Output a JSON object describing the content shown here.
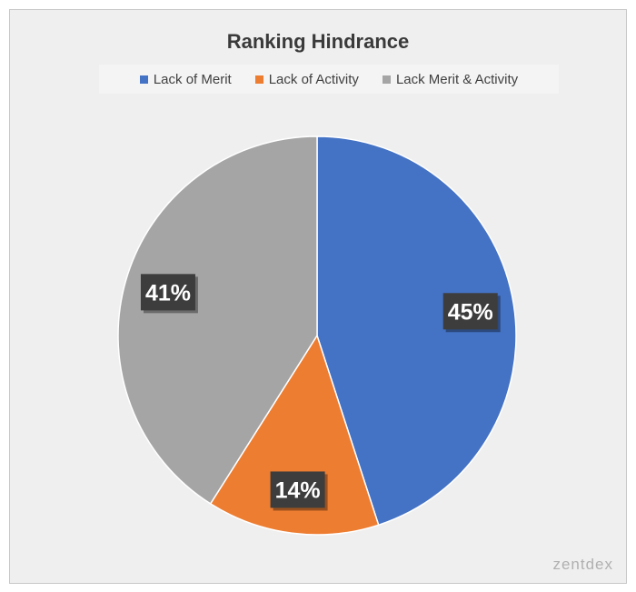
{
  "chart_data": {
    "type": "pie",
    "title": "Ranking Hindrance",
    "categories": [
      "Lack of Merit",
      "Lack of Activity",
      "Lack Merit & Activity"
    ],
    "values": [
      45,
      14,
      41
    ],
    "data_labels": [
      "45%",
      "14%",
      "41%"
    ],
    "colors": [
      "#4472C4",
      "#ED7D31",
      "#A5A5A5"
    ],
    "legend_position": "top"
  },
  "watermark": "zentdex"
}
